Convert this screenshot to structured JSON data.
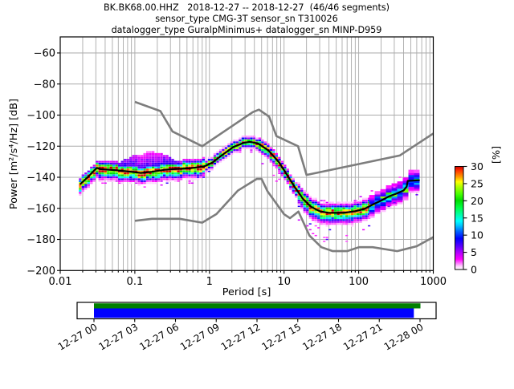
{
  "header": {
    "line1": "BK.BK68.00.HHZ   2018-12-27 -- 2018-12-27  (46/46 segments)",
    "line2": "sensor_type CMG-3T sensor_sn T310026",
    "line3": "datalogger_type GuralpMinimus+ datalogger_sn MINP-D959"
  },
  "axes": {
    "x": {
      "label": "Period [s]",
      "scale": "log",
      "min": 0.01,
      "max": 1000,
      "tick_values": [
        0.01,
        0.1,
        1,
        10,
        100,
        1000
      ],
      "ticks": [
        "0.01",
        "0.1",
        "1",
        "10",
        "100",
        "1000"
      ]
    },
    "y": {
      "label": "Power [m²/s⁴/Hz] [dB]",
      "min": -200,
      "max": -50,
      "tick_values": [
        -60,
        -80,
        -100,
        -120,
        -140,
        -160,
        -180,
        -200
      ],
      "ticks": [
        "−60",
        "−80",
        "−100",
        "−120",
        "−140",
        "−160",
        "−180",
        "−200"
      ]
    }
  },
  "colorbar": {
    "label": "[%]",
    "min": 0,
    "max": 30,
    "tick_values": [
      0,
      5,
      10,
      15,
      20,
      25,
      30
    ],
    "ticks": [
      "0",
      "5",
      "10",
      "15",
      "20",
      "25",
      "30"
    ]
  },
  "timeline": {
    "labels": [
      "12-27 00",
      "12-27 03",
      "12-27 06",
      "12-27 09",
      "12-27 12",
      "12-27 15",
      "12-27 18",
      "12-27 21",
      "12-28 00"
    ],
    "bars": [
      {
        "name": "data-availability",
        "color": "#008000",
        "start_frac": 0.0,
        "end_frac": 1.0
      },
      {
        "name": "processed-coverage",
        "color": "#0000ff",
        "start_frac": 0.0,
        "end_frac": 0.981
      }
    ]
  },
  "chart_data": {
    "type": "heatmap",
    "title": "BK.BK68.00.HHZ 2018-12-27 -- 2018-12-27 (46/46 segments)",
    "xlabel": "Period [s]",
    "ylabel": "Power [m²/s⁴/Hz] [dB]",
    "xscale": "log",
    "xlim": [
      0.01,
      1000
    ],
    "ylim": [
      -200,
      -50
    ],
    "grid": true,
    "colorbar": {
      "label": "[%]",
      "range": [
        0,
        30
      ]
    },
    "mode_curve": {
      "periods": [
        0.0185,
        0.021,
        0.024,
        0.028,
        0.031,
        0.035,
        0.05,
        0.08,
        0.12,
        0.17,
        0.25,
        0.35,
        0.55,
        0.85,
        1.1,
        1.5,
        2.1,
        2.9,
        3.5,
        4.5,
        6.2,
        8.6,
        11,
        14,
        18,
        23,
        30,
        40,
        63,
        90,
        120,
        155,
        200,
        250,
        320,
        400,
        440,
        455,
        660
      ],
      "db": [
        -144.5,
        -142,
        -139.5,
        -136,
        -134,
        -134.8,
        -135.3,
        -136.2,
        -137.2,
        -136.5,
        -135.2,
        -134.6,
        -134.2,
        -133,
        -130.5,
        -125.5,
        -120.5,
        -117.8,
        -117.2,
        -118.3,
        -122.8,
        -130.5,
        -138.5,
        -146.5,
        -154,
        -159,
        -161.8,
        -162.9,
        -162.9,
        -161.8,
        -160.3,
        -157.5,
        -155,
        -152.5,
        -150.5,
        -148.5,
        -146,
        -142.3,
        -141.9
      ]
    },
    "noise_models": {
      "nhnm": {
        "periods": [
          0.1,
          0.22,
          0.32,
          0.8,
          3.8,
          4.6,
          6.3,
          7.9,
          15.4,
          20.0,
          354.8,
          1000
        ],
        "db": [
          -91.5,
          -97.4,
          -110.5,
          -120.0,
          -98.1,
          -96.5,
          -101.0,
          -113.5,
          -120.0,
          -138.5,
          -126.0,
          -111.8
        ]
      },
      "nlnm": {
        "periods": [
          0.1,
          0.17,
          0.4,
          0.8,
          1.24,
          2.4,
          4.3,
          5.0,
          6.0,
          10.0,
          12.0,
          15.6,
          21.9,
          31.6,
          45.0,
          70.0,
          101.0,
          154.0,
          328.0,
          600.0,
          1000
        ],
        "db": [
          -168.0,
          -166.7,
          -166.7,
          -169.2,
          -163.7,
          -148.6,
          -141.1,
          -141.1,
          -149.0,
          -163.8,
          -166.3,
          -162.1,
          -177.5,
          -185.0,
          -187.5,
          -187.5,
          -185.0,
          -185.0,
          -187.5,
          -184.4,
          -178.5
        ]
      }
    },
    "histogram": {
      "period_range": [
        0.0185,
        700
      ],
      "db_bin_width": 1.25,
      "log_bin_width": 0.0376,
      "seed": 7,
      "colormap_stops": [
        [
          0.0,
          "#ffffff"
        ],
        [
          0.033,
          "#ffccff"
        ],
        [
          0.1,
          "#ff00ff"
        ],
        [
          0.17,
          "#aa00ff"
        ],
        [
          0.23,
          "#5500ff"
        ],
        [
          0.3,
          "#0000ff"
        ],
        [
          0.37,
          "#0066ff"
        ],
        [
          0.43,
          "#00ccff"
        ],
        [
          0.47,
          "#00ffff"
        ],
        [
          0.53,
          "#00ffaa"
        ],
        [
          0.6,
          "#00ff44"
        ],
        [
          0.67,
          "#00dd00"
        ],
        [
          0.73,
          "#44ff00"
        ],
        [
          0.8,
          "#aaff00"
        ],
        [
          0.85,
          "#ffff00"
        ],
        [
          0.9,
          "#ff9900"
        ],
        [
          0.96,
          "#ff3300"
        ],
        [
          1.0,
          "#cc0000"
        ]
      ],
      "regions": [
        {
          "pmax": 0.032,
          "su": 2.0,
          "sd": 2.6,
          "max": 30,
          "up": 4,
          "dn": 6.25
        },
        {
          "pmax": 0.9,
          "su": 2.4,
          "sd": 2.8,
          "max": 30,
          "up": 5,
          "dn": 7.5,
          "odn": 0.45,
          "odnMin": 6,
          "odnMax": 10.5
        },
        {
          "pmax": 4.5,
          "su": 1.5,
          "sd": 1.5,
          "max": 30,
          "up": 3.75,
          "dn": 3.75,
          "odn": 0.12,
          "odnMin": 4,
          "odnMax": 6
        },
        {
          "pmax": 15,
          "su": 1.7,
          "sd": 2.2,
          "max": 30,
          "up": 3.75,
          "dn": 6.25,
          "odn": 0.35,
          "odnMin": 6,
          "odnMax": 15
        },
        {
          "pmax": 150,
          "su": 2.4,
          "sd": 3.2,
          "max": 28,
          "up": 6.25,
          "dn": 8.75,
          "odn": 0.55,
          "odnMin": 8,
          "odnMax": 19,
          "oup": 0.3,
          "oupMin": 5,
          "oupMax": 9
        },
        {
          "pmax": 700,
          "su": 3.4,
          "sd": 3.2,
          "max": 13,
          "up": 6.25,
          "dn": 8,
          "wide": true,
          "odn": 0.4,
          "odnMin": 5,
          "odnMax": 10,
          "oup": 0.4,
          "oupMin": 5,
          "oupMax": 10
        }
      ],
      "bulge": {
        "pmin": 0.045,
        "pmax": 0.55,
        "peak_logp": -0.82,
        "width_log": 0.42,
        "max_height_db": 13
      }
    }
  }
}
